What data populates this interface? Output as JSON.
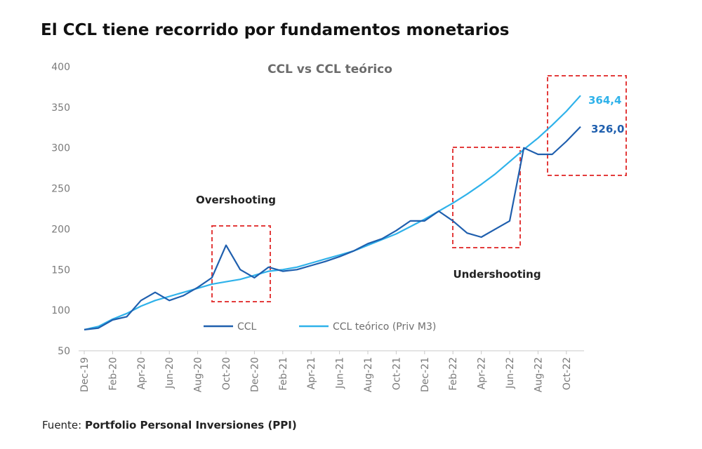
{
  "page": {
    "title": "El CCL tiene recorrido por fundamentos monetarios",
    "source_prefix": "Fuente: ",
    "source_name": "Portfolio Personal Inversiones (PPI)"
  },
  "chart_data": {
    "type": "line",
    "title": "CCL vs CCL teórico",
    "xlabel": "",
    "ylabel": "",
    "ylim": [
      50,
      400
    ],
    "y_ticks": [
      "400",
      "350",
      "300",
      "250",
      "200",
      "150",
      "100",
      "50"
    ],
    "x_ticks": [
      "Dec-19",
      "Feb-20",
      "Apr-20",
      "Jun-20",
      "Aug-20",
      "Oct-20",
      "Dec-20",
      "Feb-21",
      "Apr-21",
      "Jun-21",
      "Aug-21",
      "Oct-21",
      "Dec-21",
      "Feb-22",
      "Apr-22",
      "Jun-22",
      "Aug-22",
      "Oct-22"
    ],
    "legend": "bottom-center",
    "grid": false,
    "series": [
      {
        "name": "CCL",
        "color": "#1f5fae",
        "end_label": "326,0",
        "points": [
          [
            "Dec-19",
            76
          ],
          [
            "Jan-20",
            78
          ],
          [
            "Feb-20",
            88
          ],
          [
            "Mar-20",
            92
          ],
          [
            "Apr-20",
            112
          ],
          [
            "May-20",
            122
          ],
          [
            "Jun-20",
            112
          ],
          [
            "Jul-20",
            118
          ],
          [
            "Aug-20",
            128
          ],
          [
            "Sep-20",
            140
          ],
          [
            "Oct-20",
            180
          ],
          [
            "Nov-20",
            150
          ],
          [
            "Dec-20",
            140
          ],
          [
            "Jan-21",
            153
          ],
          [
            "Feb-21",
            148
          ],
          [
            "Mar-21",
            150
          ],
          [
            "Apr-21",
            155
          ],
          [
            "May-21",
            160
          ],
          [
            "Jun-21",
            166
          ],
          [
            "Jul-21",
            173
          ],
          [
            "Aug-21",
            182
          ],
          [
            "Sep-21",
            188
          ],
          [
            "Oct-21",
            198
          ],
          [
            "Nov-21",
            210
          ],
          [
            "Dec-21",
            210
          ],
          [
            "Jan-22",
            222
          ],
          [
            "Feb-22",
            210
          ],
          [
            "Mar-22",
            195
          ],
          [
            "Apr-22",
            190
          ],
          [
            "May-22",
            200
          ],
          [
            "Jun-22",
            210
          ],
          [
            "Jul-22",
            300
          ],
          [
            "Aug-22",
            292
          ],
          [
            "Sep-22",
            292
          ],
          [
            "Oct-22",
            308
          ],
          [
            "Nov-22",
            326
          ]
        ]
      },
      {
        "name": "CCL teórico (Priv M3)",
        "color": "#2fb2ea",
        "end_label": "364,4",
        "points": [
          [
            "Dec-19",
            76
          ],
          [
            "Jan-20",
            80
          ],
          [
            "Feb-20",
            89
          ],
          [
            "Mar-20",
            96
          ],
          [
            "Apr-20",
            105
          ],
          [
            "May-20",
            112
          ],
          [
            "Jun-20",
            117
          ],
          [
            "Jul-20",
            122
          ],
          [
            "Aug-20",
            127
          ],
          [
            "Sep-20",
            132
          ],
          [
            "Oct-20",
            135
          ],
          [
            "Nov-20",
            138
          ],
          [
            "Dec-20",
            143
          ],
          [
            "Jan-21",
            148
          ],
          [
            "Feb-21",
            150
          ],
          [
            "Mar-21",
            153
          ],
          [
            "Apr-21",
            158
          ],
          [
            "May-21",
            163
          ],
          [
            "Jun-21",
            168
          ],
          [
            "Jul-21",
            173
          ],
          [
            "Aug-21",
            180
          ],
          [
            "Sep-21",
            187
          ],
          [
            "Oct-21",
            194
          ],
          [
            "Nov-21",
            203
          ],
          [
            "Dec-21",
            212
          ],
          [
            "Jan-22",
            222
          ],
          [
            "Feb-22",
            232
          ],
          [
            "Mar-22",
            243
          ],
          [
            "Apr-22",
            255
          ],
          [
            "May-22",
            268
          ],
          [
            "Jun-22",
            283
          ],
          [
            "Jul-22",
            298
          ],
          [
            "Aug-22",
            312
          ],
          [
            "Sep-22",
            328
          ],
          [
            "Oct-22",
            345
          ],
          [
            "Nov-22",
            364.4
          ]
        ]
      }
    ],
    "annotations": [
      "Overshooting",
      "Undershooting"
    ]
  }
}
